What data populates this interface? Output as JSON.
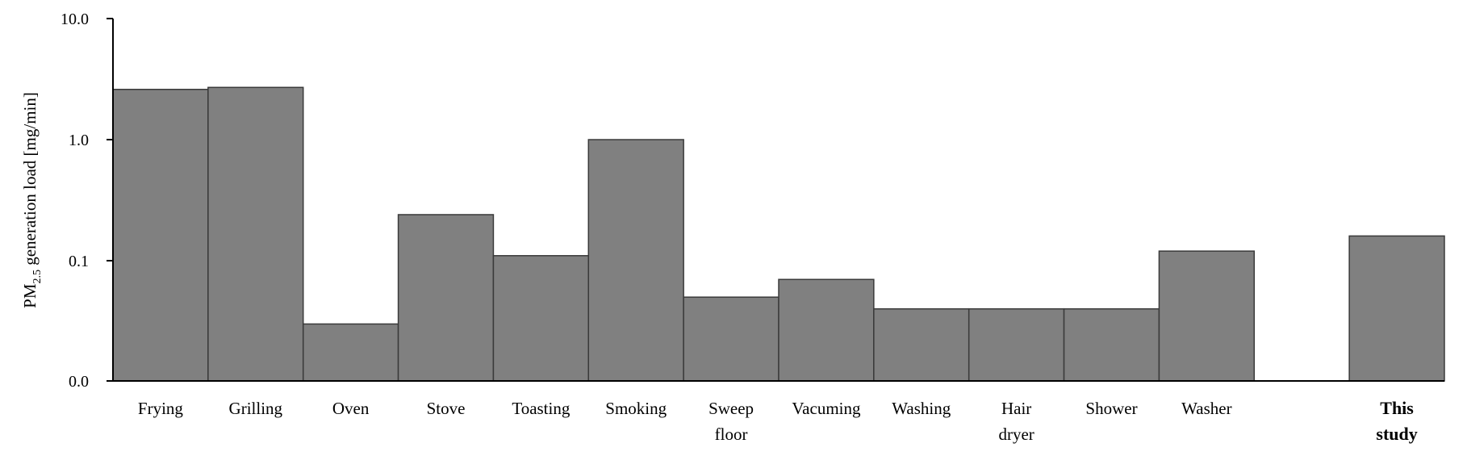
{
  "chart_data": {
    "type": "bar",
    "ylabel": {
      "prefix": "PM",
      "subscript": "2.5",
      "suffix": " generation load [mg/min]"
    },
    "y_scale": "log",
    "yticks": [
      "0.0",
      "0.1",
      "1.0",
      "10.0"
    ],
    "categories": [
      {
        "lines": [
          "Frying"
        ],
        "bold": false
      },
      {
        "lines": [
          "Grilling"
        ],
        "bold": false
      },
      {
        "lines": [
          "Oven"
        ],
        "bold": false
      },
      {
        "lines": [
          "Stove"
        ],
        "bold": false
      },
      {
        "lines": [
          "Toasting"
        ],
        "bold": false
      },
      {
        "lines": [
          "Smoking"
        ],
        "bold": false
      },
      {
        "lines": [
          "Sweep",
          "floor"
        ],
        "bold": false
      },
      {
        "lines": [
          "Vacuming"
        ],
        "bold": false
      },
      {
        "lines": [
          "Washing"
        ],
        "bold": false
      },
      {
        "lines": [
          "Hair",
          "dryer"
        ],
        "bold": false
      },
      {
        "lines": [
          "Shower"
        ],
        "bold": false
      },
      {
        "lines": [
          "Washer"
        ],
        "bold": false
      },
      {
        "lines": [
          ""
        ],
        "bold": false
      },
      {
        "lines": [
          "This",
          "study"
        ],
        "bold": true
      }
    ],
    "values": [
      2.6,
      2.7,
      0.03,
      0.24,
      0.11,
      1.0,
      0.05,
      0.07,
      0.04,
      0.04,
      0.04,
      0.12,
      null,
      0.16
    ],
    "bar_color": "#808080",
    "grid": false,
    "legend": "none"
  }
}
